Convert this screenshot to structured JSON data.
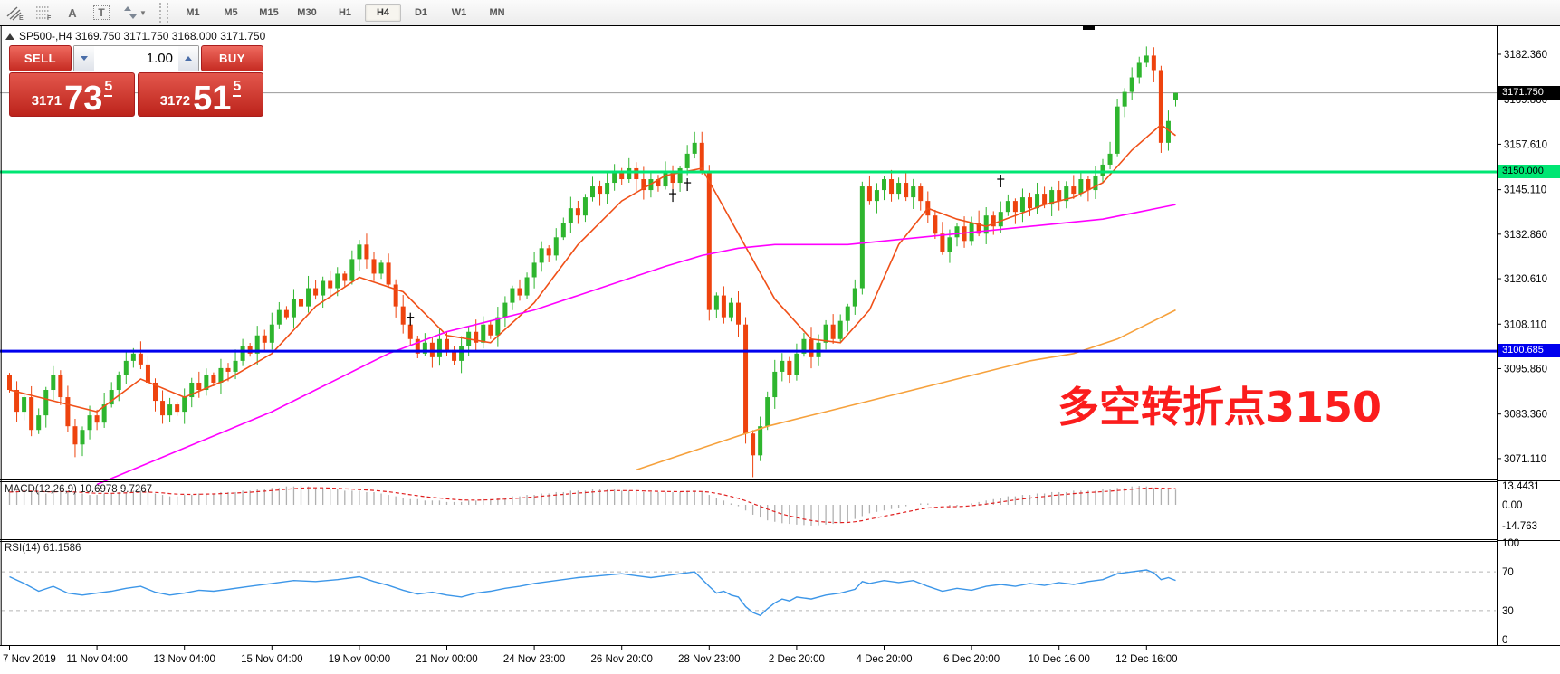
{
  "toolbar": {
    "letter_a": "A",
    "letter_t": "T",
    "timeframes": [
      "M1",
      "M5",
      "M15",
      "M30",
      "H1",
      "H4",
      "D1",
      "W1",
      "MN"
    ],
    "active_timeframe": "H4"
  },
  "chart": {
    "title": "SP500-,H4  3169.750 3171.750 3168.000 3171.750",
    "symbol": "SP500-",
    "period": "H4",
    "ohlc": {
      "open": "3169.750",
      "high": "3171.750",
      "low": "3168.000",
      "close": "3171.750"
    }
  },
  "trade_panel": {
    "sell_label": "SELL",
    "buy_label": "BUY",
    "volume": "1.00",
    "bid_small": "3171",
    "bid_big": "73",
    "bid_sup": "5",
    "ask_small": "3172",
    "ask_big": "51",
    "ask_sup": "5"
  },
  "price_scale": {
    "current_price": "3171.750",
    "green_level_label": "3150.000",
    "blue_level_label": "3100.685"
  },
  "macd": {
    "label": "MACD(12,26,9) 10.6978 9.7267",
    "scale": [
      "13.4431",
      "0.00",
      "-14.763"
    ]
  },
  "rsi": {
    "label": "RSI(14) 61.1586",
    "scale": [
      "100",
      "70",
      "30",
      "0"
    ]
  },
  "annotation": {
    "text": "多空转折点3150",
    "color": "#fb1d1d"
  },
  "time_axis": [
    "7 Nov 2019",
    "11 Nov 04:00",
    "13 Nov 04:00",
    "15 Nov 04:00",
    "19 Nov 00:00",
    "21 Nov 00:00",
    "24 Nov 23:00",
    "26 Nov 20:00",
    "28 Nov 23:00",
    "2 Dec 20:00",
    "4 Dec 20:00",
    "6 Dec 20:00",
    "10 Dec 16:00",
    "12 Dec 16:00"
  ],
  "chart_data": [
    {
      "type": "candlestick",
      "title": "SP500-,H4",
      "timeframe": "H4",
      "x_labels": [
        "7 Nov 2019",
        "11 Nov 04:00",
        "13 Nov 04:00",
        "15 Nov 04:00",
        "19 Nov 00:00",
        "21 Nov 00:00",
        "24 Nov 23:00",
        "26 Nov 20:00",
        "28 Nov 23:00",
        "2 Dec 20:00",
        "4 Dec 20:00",
        "6 Dec 20:00",
        "10 Dec 16:00",
        "12 Dec 16:00"
      ],
      "price_axis": {
        "min": 3065.4,
        "max": 3190.3,
        "ticks": [
          3182.36,
          3169.86,
          3157.61,
          3145.11,
          3132.86,
          3120.61,
          3108.11,
          3095.86,
          3083.36,
          3071.11
        ]
      },
      "first_open": 3094,
      "closes": [
        3090,
        3084,
        3088,
        3079,
        3083,
        3090,
        3094,
        3088,
        3080,
        3075,
        3079,
        3083,
        3081,
        3086,
        3090,
        3094,
        3098,
        3100,
        3097,
        3092,
        3087,
        3083,
        3086,
        3084,
        3088,
        3092,
        3090,
        3094,
        3092,
        3096,
        3095,
        3098,
        3102,
        3100,
        3105,
        3103,
        3108,
        3112,
        3110,
        3115,
        3113,
        3118,
        3116,
        3120,
        3118,
        3122,
        3120,
        3126,
        3130,
        3126,
        3122,
        3125,
        3119,
        3113,
        3108,
        3104,
        3100,
        3103,
        3099,
        3104,
        3101,
        3098,
        3102,
        3106,
        3103,
        3108,
        3105,
        3110,
        3114,
        3118,
        3116,
        3121,
        3125,
        3129,
        3127,
        3132,
        3136,
        3140,
        3138,
        3143,
        3146,
        3144,
        3147,
        3150,
        3148,
        3151,
        3148,
        3145,
        3148,
        3146,
        3150,
        3147,
        3151,
        3155,
        3158,
        3150,
        3112,
        3116,
        3110,
        3114,
        3108,
        3078,
        3072,
        3080,
        3088,
        3095,
        3098,
        3094,
        3100,
        3104,
        3099,
        3103,
        3108,
        3104,
        3109,
        3113,
        3118,
        3146,
        3142,
        3145,
        3148,
        3144,
        3147,
        3143,
        3146,
        3142,
        3138,
        3133,
        3128,
        3132,
        3135,
        3131,
        3136,
        3133,
        3138,
        3135,
        3139,
        3142,
        3139,
        3143,
        3140,
        3144,
        3141,
        3145,
        3142,
        3146,
        3144,
        3148,
        3145,
        3149,
        3152,
        3155,
        3168,
        3172,
        3176,
        3180,
        3182,
        3178,
        3158,
        3164,
        3171.75
      ],
      "last_candle_ohlc": [
        3169.75,
        3171.75,
        3168.0,
        3171.75
      ],
      "wick_overrides": {
        "highs": {
          "17": 3101.5,
          "94": 3161,
          "156": 3184.5
        },
        "lows": {
          "9": 3071.5,
          "102": 3066
        }
      },
      "hlines": [
        {
          "price": 3150.0,
          "label": "3150.000",
          "color": "#00e673",
          "width": 3
        },
        {
          "price": 3100.685,
          "label": "3100.685",
          "color": "#0000ee",
          "width": 3
        }
      ],
      "current_price": 3171.75,
      "ma_lines": [
        {
          "name": "fast-ma",
          "color": "#f05018",
          "points": [
            [
              0,
              3090
            ],
            [
              6,
              3087
            ],
            [
              12,
              3084
            ],
            [
              18,
              3093
            ],
            [
              24,
              3088
            ],
            [
              30,
              3093
            ],
            [
              36,
              3100
            ],
            [
              42,
              3113
            ],
            [
              48,
              3121
            ],
            [
              54,
              3117
            ],
            [
              60,
              3105
            ],
            [
              66,
              3103
            ],
            [
              72,
              3114
            ],
            [
              78,
              3130
            ],
            [
              84,
              3142
            ],
            [
              90,
              3149
            ],
            [
              95,
              3151
            ],
            [
              100,
              3133
            ],
            [
              105,
              3115
            ],
            [
              110,
              3104
            ],
            [
              114,
              3103
            ],
            [
              118,
              3112
            ],
            [
              122,
              3130
            ],
            [
              126,
              3140
            ],
            [
              130,
              3137
            ],
            [
              134,
              3135
            ],
            [
              138,
              3138
            ],
            [
              142,
              3141
            ],
            [
              146,
              3143
            ],
            [
              150,
              3147
            ],
            [
              154,
              3156
            ],
            [
              158,
              3163
            ],
            [
              160,
              3160
            ]
          ]
        },
        {
          "name": "mid-ma",
          "color": "#ff00ff",
          "points": [
            [
              12,
              3064
            ],
            [
              18,
              3069
            ],
            [
              24,
              3074
            ],
            [
              30,
              3079
            ],
            [
              36,
              3084
            ],
            [
              42,
              3090
            ],
            [
              48,
              3096
            ],
            [
              52,
              3100
            ],
            [
              56,
              3103
            ],
            [
              60,
              3106
            ],
            [
              66,
              3109
            ],
            [
              72,
              3112
            ],
            [
              78,
              3116
            ],
            [
              84,
              3120
            ],
            [
              90,
              3124
            ],
            [
              95,
              3127
            ],
            [
              100,
              3129
            ],
            [
              105,
              3130
            ],
            [
              110,
              3130
            ],
            [
              115,
              3130
            ],
            [
              120,
              3131
            ],
            [
              125,
              3132
            ],
            [
              130,
              3133
            ],
            [
              135,
              3134
            ],
            [
              140,
              3135
            ],
            [
              145,
              3136
            ],
            [
              150,
              3137
            ],
            [
              155,
              3139
            ],
            [
              160,
              3141
            ]
          ]
        },
        {
          "name": "slow-ma",
          "color": "#f6a13c",
          "points": [
            [
              86,
              3068
            ],
            [
              92,
              3072
            ],
            [
              98,
              3076
            ],
            [
              104,
              3080
            ],
            [
              110,
              3083
            ],
            [
              116,
              3086
            ],
            [
              122,
              3089
            ],
            [
              128,
              3092
            ],
            [
              134,
              3095
            ],
            [
              140,
              3098
            ],
            [
              146,
              3100
            ],
            [
              152,
              3104
            ],
            [
              156,
              3108
            ],
            [
              160,
              3112
            ]
          ]
        }
      ],
      "markers": [
        [
          55,
          3110
        ],
        [
          91,
          3144
        ],
        [
          93,
          3147
        ],
        [
          136,
          3148
        ]
      ],
      "colors": {
        "up": "#2eb52e",
        "down": "#ee430e"
      }
    },
    {
      "type": "bar",
      "name": "MACD(12,26,9)",
      "current_values": [
        10.6978,
        9.7267
      ],
      "ylim": [
        -14.763,
        13.4431
      ],
      "scale_values": [
        13.4431,
        0,
        -14.763
      ],
      "values": [
        9,
        10,
        11,
        10,
        9,
        8,
        9,
        10,
        9,
        8,
        8,
        7,
        7,
        8,
        8,
        9,
        9,
        10,
        10,
        9,
        8,
        7,
        6,
        6,
        7,
        7,
        8,
        8,
        8,
        9,
        9,
        9,
        10,
        10,
        11,
        11,
        12,
        12,
        13,
        13,
        13.4,
        13,
        12,
        12,
        11,
        11,
        10,
        10,
        10,
        9,
        9,
        8,
        7,
        6,
        5,
        4,
        4,
        3,
        3,
        3,
        2,
        2,
        2,
        3,
        3,
        4,
        4,
        5,
        5,
        6,
        6,
        7,
        7,
        8,
        8,
        9,
        9,
        10,
        10,
        10,
        11,
        11,
        11,
        11,
        10,
        10,
        10,
        9,
        9,
        9,
        9,
        9,
        9,
        10,
        10,
        9,
        7,
        5,
        3,
        1,
        -1,
        -4,
        -7,
        -9,
        -11,
        -12,
        -13,
        -13.5,
        -14,
        -14.3,
        -14.7,
        -14.5,
        -14,
        -13.5,
        -13,
        -12,
        -10,
        -8,
        -6,
        -5,
        -4,
        -3,
        -2,
        -1,
        0,
        1,
        1,
        0,
        0,
        -1,
        -1,
        0,
        1,
        2,
        3,
        4,
        5,
        6,
        6,
        7,
        7,
        8,
        8,
        9,
        9,
        9,
        10,
        10,
        10,
        10,
        11,
        11,
        12,
        12,
        13,
        13.4,
        13,
        12,
        11.5,
        11,
        10.7
      ],
      "signal_period": 9,
      "histogram_color": "#b0b0b0",
      "signal_color": "#e02020"
    },
    {
      "type": "line",
      "name": "RSI(14)",
      "current_value": 61.1586,
      "ylim": [
        0,
        100
      ],
      "levels": [
        70,
        30
      ],
      "scale_values": [
        100,
        70,
        30,
        0
      ],
      "line_color": "#3c96e8",
      "points": [
        [
          0,
          65
        ],
        [
          2,
          58
        ],
        [
          4,
          50
        ],
        [
          6,
          55
        ],
        [
          8,
          48
        ],
        [
          10,
          46
        ],
        [
          12,
          48
        ],
        [
          14,
          50
        ],
        [
          16,
          53
        ],
        [
          18,
          55
        ],
        [
          20,
          49
        ],
        [
          22,
          46
        ],
        [
          24,
          48
        ],
        [
          26,
          51
        ],
        [
          28,
          50
        ],
        [
          30,
          52
        ],
        [
          33,
          55
        ],
        [
          36,
          58
        ],
        [
          39,
          61
        ],
        [
          42,
          60
        ],
        [
          45,
          62
        ],
        [
          48,
          65
        ],
        [
          50,
          60
        ],
        [
          52,
          56
        ],
        [
          54,
          51
        ],
        [
          56,
          47
        ],
        [
          58,
          49
        ],
        [
          60,
          46
        ],
        [
          62,
          44
        ],
        [
          64,
          48
        ],
        [
          66,
          50
        ],
        [
          68,
          53
        ],
        [
          70,
          55
        ],
        [
          72,
          58
        ],
        [
          75,
          61
        ],
        [
          78,
          64
        ],
        [
          81,
          66
        ],
        [
          84,
          68
        ],
        [
          86,
          66
        ],
        [
          88,
          64
        ],
        [
          90,
          66
        ],
        [
          92,
          68
        ],
        [
          94,
          70
        ],
        [
          96,
          55
        ],
        [
          97,
          48
        ],
        [
          98,
          50
        ],
        [
          99,
          46
        ],
        [
          100,
          44
        ],
        [
          101,
          34
        ],
        [
          102,
          28
        ],
        [
          103,
          25
        ],
        [
          104,
          32
        ],
        [
          105,
          38
        ],
        [
          106,
          42
        ],
        [
          107,
          40
        ],
        [
          108,
          44
        ],
        [
          110,
          42
        ],
        [
          112,
          46
        ],
        [
          114,
          48
        ],
        [
          116,
          52
        ],
        [
          117,
          60
        ],
        [
          118,
          58
        ],
        [
          120,
          61
        ],
        [
          122,
          59
        ],
        [
          124,
          61
        ],
        [
          126,
          55
        ],
        [
          128,
          50
        ],
        [
          130,
          53
        ],
        [
          132,
          51
        ],
        [
          134,
          55
        ],
        [
          136,
          57
        ],
        [
          138,
          55
        ],
        [
          140,
          58
        ],
        [
          142,
          56
        ],
        [
          144,
          59
        ],
        [
          146,
          57
        ],
        [
          148,
          60
        ],
        [
          150,
          62
        ],
        [
          152,
          68
        ],
        [
          154,
          70
        ],
        [
          156,
          72
        ],
        [
          157,
          69
        ],
        [
          158,
          62
        ],
        [
          159,
          64
        ],
        [
          160,
          61.16
        ]
      ]
    }
  ]
}
